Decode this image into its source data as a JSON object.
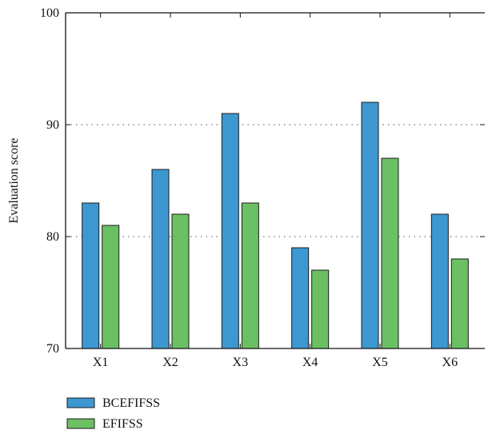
{
  "chart_data": {
    "type": "bar",
    "categories": [
      "X1",
      "X2",
      "X3",
      "X4",
      "X5",
      "X6"
    ],
    "series": [
      {
        "name": "BCEFIFSS",
        "values": [
          83,
          86,
          91,
          79,
          92,
          82
        ],
        "color": "#3d98d1"
      },
      {
        "name": "EFIFSS",
        "values": [
          81,
          82,
          83,
          77,
          87,
          78
        ],
        "color": "#6cc064"
      }
    ],
    "title": "",
    "xlabel": "",
    "ylabel": "Evaluation score",
    "ylim": [
      70,
      100
    ],
    "yticks": [
      70,
      80,
      90,
      100
    ],
    "grid": {
      "y": true,
      "style": "dotted",
      "values": [
        80,
        90
      ]
    },
    "legend": "bottom-left"
  }
}
